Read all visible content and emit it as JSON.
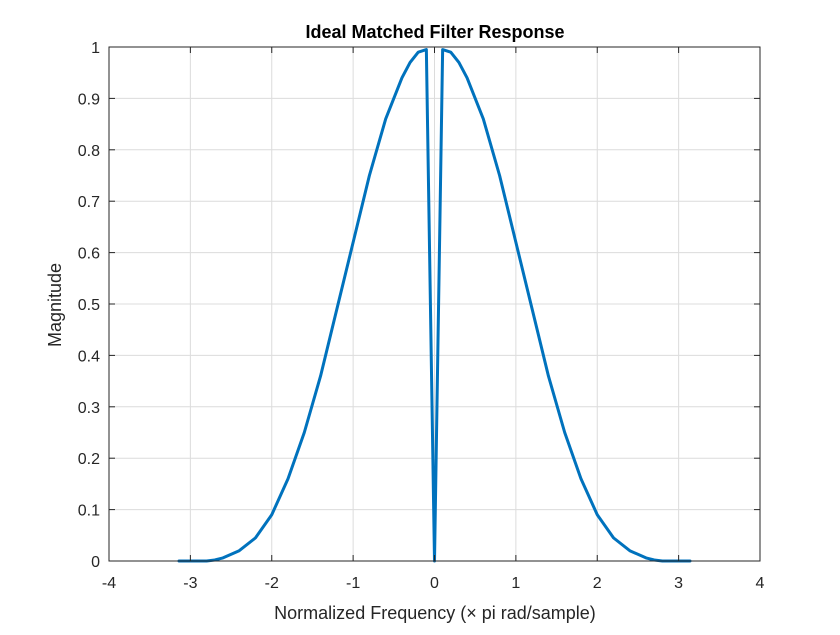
{
  "chart_data": {
    "type": "line",
    "title": "Ideal Matched Filter Response",
    "xlabel": "Normalized Frequency (× pi rad/sample)",
    "ylabel": "Magnitude",
    "xlim": [
      -4,
      4
    ],
    "ylim": [
      0,
      1
    ],
    "grid": true,
    "x_ticks": [
      -4,
      -3,
      -2,
      -1,
      0,
      1,
      2,
      3,
      4
    ],
    "x_tick_labels": [
      "-4",
      "-3",
      "-2",
      "-1",
      "0",
      "1",
      "2",
      "3",
      "4"
    ],
    "y_ticks": [
      0,
      0.1,
      0.2,
      0.3,
      0.4,
      0.5,
      0.6,
      0.7,
      0.8,
      0.9,
      1
    ],
    "y_tick_labels": [
      "0",
      "0.1",
      "0.2",
      "0.3",
      "0.4",
      "0.5",
      "0.6",
      "0.7",
      "0.8",
      "0.9",
      "1"
    ],
    "series": [
      {
        "color": "#0072BD",
        "x": [
          -3.14,
          -3.0,
          -2.8,
          -2.7,
          -2.6,
          -2.4,
          -2.2,
          -2.0,
          -1.8,
          -1.6,
          -1.4,
          -1.2,
          -1.0,
          -0.8,
          -0.6,
          -0.4,
          -0.3,
          -0.2,
          -0.1,
          0.0,
          0.1,
          0.2,
          0.3,
          0.4,
          0.6,
          0.8,
          1.0,
          1.2,
          1.4,
          1.6,
          1.8,
          2.0,
          2.2,
          2.4,
          2.6,
          2.7,
          2.8,
          3.0,
          3.14
        ],
        "y": [
          0.0,
          0.0,
          0.0,
          0.002,
          0.006,
          0.02,
          0.045,
          0.09,
          0.16,
          0.25,
          0.36,
          0.49,
          0.62,
          0.75,
          0.86,
          0.94,
          0.97,
          0.99,
          0.995,
          0.0,
          0.995,
          0.99,
          0.97,
          0.94,
          0.86,
          0.75,
          0.62,
          0.49,
          0.36,
          0.25,
          0.16,
          0.09,
          0.045,
          0.02,
          0.006,
          0.002,
          0.0,
          0.0,
          0.0
        ]
      }
    ]
  }
}
